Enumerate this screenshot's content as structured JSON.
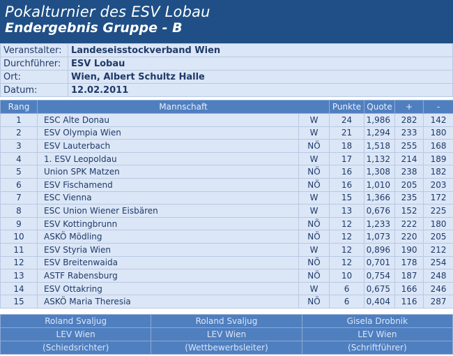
{
  "header": {
    "title": "Pokalturnier des ESV Lobau",
    "subtitle": "Endergebnis Gruppe - B"
  },
  "info": [
    {
      "label": "Veranstalter:",
      "value": "Landeseisstockverband Wien"
    },
    {
      "label": "Durchführer:",
      "value": "ESV Lobau"
    },
    {
      "label": "Ort:",
      "value": "Wien, Albert Schultz Halle"
    },
    {
      "label": "Datum:",
      "value": "12.02.2011"
    }
  ],
  "table": {
    "headers": {
      "rang": "Rang",
      "mannschaft": "Mannschaft",
      "punkte": "Punkte",
      "quote": "Quote",
      "plus": "+",
      "minus": "-"
    },
    "rows": [
      {
        "rang": "1",
        "team": "ESC Alte Donau",
        "region": "W",
        "punkte": "24",
        "quote": "1,986",
        "plus": "282",
        "minus": "142"
      },
      {
        "rang": "2",
        "team": "ESV Olympia Wien",
        "region": "W",
        "punkte": "21",
        "quote": "1,294",
        "plus": "233",
        "minus": "180"
      },
      {
        "rang": "3",
        "team": "ESV Lauterbach",
        "region": "NÖ",
        "punkte": "18",
        "quote": "1,518",
        "plus": "255",
        "minus": "168"
      },
      {
        "rang": "4",
        "team": "1. ESV Leopoldau",
        "region": "W",
        "punkte": "17",
        "quote": "1,132",
        "plus": "214",
        "minus": "189"
      },
      {
        "rang": "5",
        "team": "Union SPK Matzen",
        "region": "NÖ",
        "punkte": "16",
        "quote": "1,308",
        "plus": "238",
        "minus": "182"
      },
      {
        "rang": "6",
        "team": "ESV Fischamend",
        "region": "NÖ",
        "punkte": "16",
        "quote": "1,010",
        "plus": "205",
        "minus": "203"
      },
      {
        "rang": "7",
        "team": "ESC Vienna",
        "region": "W",
        "punkte": "15",
        "quote": "1,366",
        "plus": "235",
        "minus": "172"
      },
      {
        "rang": "8",
        "team": "ESC Union Wiener Eisbären",
        "region": "W",
        "punkte": "13",
        "quote": "0,676",
        "plus": "152",
        "minus": "225"
      },
      {
        "rang": "9",
        "team": "ESV Kottingbrunn",
        "region": "NÖ",
        "punkte": "12",
        "quote": "1,233",
        "plus": "222",
        "minus": "180"
      },
      {
        "rang": "10",
        "team": "ASKÖ Mödling",
        "region": "NÖ",
        "punkte": "12",
        "quote": "1,073",
        "plus": "220",
        "minus": "205"
      },
      {
        "rang": "11",
        "team": "ESV Styria Wien",
        "region": "W",
        "punkte": "12",
        "quote": "0,896",
        "plus": "190",
        "minus": "212"
      },
      {
        "rang": "12",
        "team": "ESV Breitenwaida",
        "region": "NÖ",
        "punkte": "12",
        "quote": "0,701",
        "plus": "178",
        "minus": "254"
      },
      {
        "rang": "13",
        "team": "ASTF Rabensburg",
        "region": "NÖ",
        "punkte": "10",
        "quote": "0,754",
        "plus": "187",
        "minus": "248"
      },
      {
        "rang": "14",
        "team": "ESV Ottakring",
        "region": "W",
        "punkte": "6",
        "quote": "0,675",
        "plus": "166",
        "minus": "246"
      },
      {
        "rang": "15",
        "team": "ASKÖ Maria Theresia",
        "region": "NÖ",
        "punkte": "6",
        "quote": "0,404",
        "plus": "116",
        "minus": "287"
      }
    ]
  },
  "officials": [
    {
      "name": "Roland Svaljug",
      "org": "LEV Wien",
      "role": "(Schiedsrichter)"
    },
    {
      "name": "Roland Svaljug",
      "org": "LEV Wien",
      "role": "(Wettbewerbsleiter)"
    },
    {
      "name": "Gisela Drobnik",
      "org": "LEV Wien",
      "role": "(Schriftführer)"
    }
  ],
  "colors": {
    "header_bg": "#1f4f86",
    "row_bg": "#dbe6f7",
    "table_header_bg": "#4f7fbf",
    "text": "#1f3a68"
  }
}
